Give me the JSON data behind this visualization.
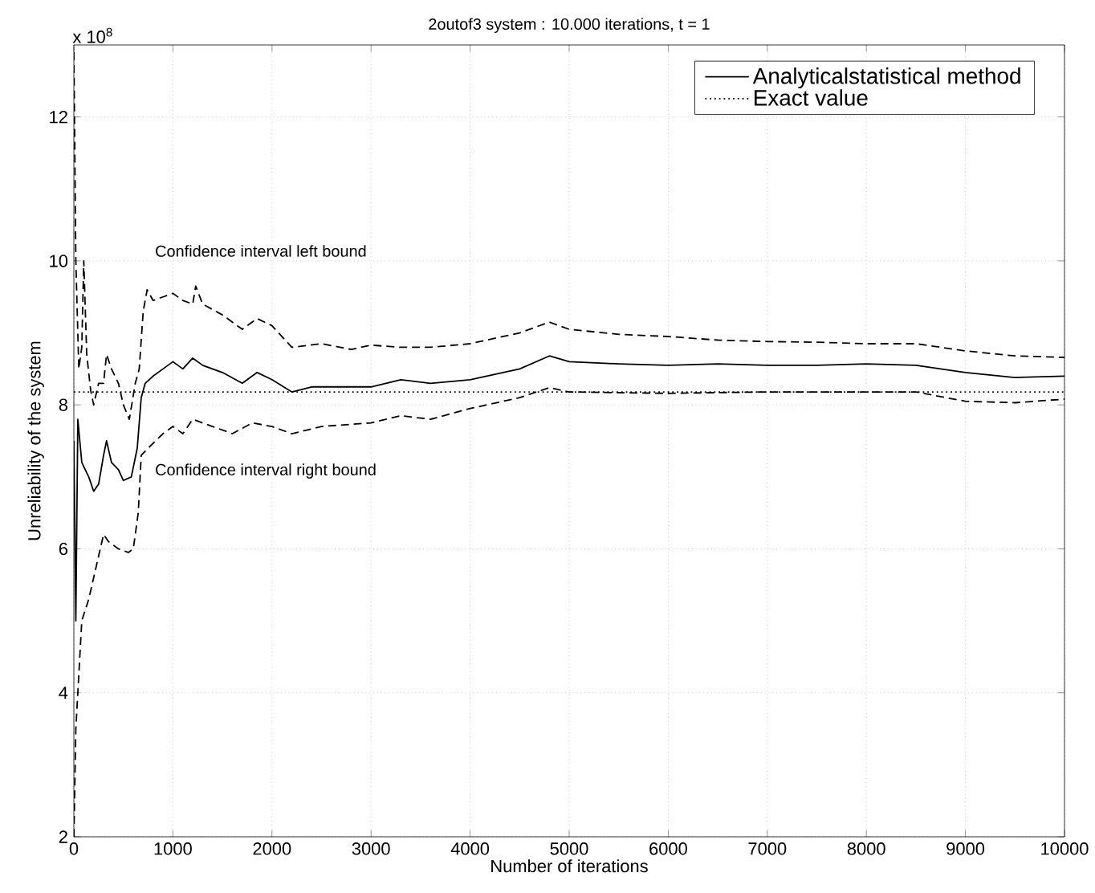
{
  "chart_data": {
    "type": "line",
    "title": "2outof3 system : 10.000 iterations, t = 1",
    "xlabel": "Number of iterations",
    "ylabel": "Unreliability of the system",
    "annotations": [
      "x 10$^{8}$",
      "Confidence interval left bound",
      "Confidence interval right bound"
    ],
    "xlim": [
      0,
      10000
    ],
    "ylim": [
      2,
      13
    ],
    "xticks": [
      0,
      1000,
      2000,
      3000,
      4000,
      5000,
      6000,
      7000,
      8000,
      9000,
      10000
    ],
    "yticks": [
      2,
      4,
      6,
      8,
      10,
      12
    ],
    "grid": true,
    "legend": "top right",
    "series": [
      {
        "name": "Analyticalstatistical method",
        "color": "#000000",
        "line_style": "solid",
        "x": [
          0,
          20,
          40,
          80,
          150,
          200,
          250,
          300,
          330,
          380,
          450,
          500,
          580,
          640,
          680,
          720,
          800,
          900,
          1000,
          1100,
          1200,
          1300,
          1500,
          1700,
          1850,
          2000,
          2200,
          2400,
          2800,
          3000,
          3300,
          3600,
          4000,
          4500,
          4800,
          5000,
          5500,
          6000,
          6500,
          7000,
          7500,
          8000,
          8500,
          9000,
          9500,
          10000
        ],
        "values": [
          7.5,
          5.0,
          7.8,
          7.2,
          7.0,
          6.8,
          6.9,
          7.3,
          7.5,
          7.2,
          7.1,
          6.95,
          7.0,
          7.4,
          8.1,
          8.3,
          8.4,
          8.5,
          8.6,
          8.5,
          8.65,
          8.55,
          8.45,
          8.3,
          8.45,
          8.35,
          8.18,
          8.25,
          8.25,
          8.25,
          8.35,
          8.3,
          8.35,
          8.5,
          8.68,
          8.6,
          8.57,
          8.55,
          8.57,
          8.55,
          8.55,
          8.57,
          8.55,
          8.45,
          8.38,
          8.4
        ]
      },
      {
        "name": "Exact value",
        "color": "#000000",
        "line_style": "dotted",
        "x": [
          0,
          10000
        ],
        "values": [
          8.18,
          8.18
        ]
      },
      {
        "color": "#000000",
        "line_style": "dashed",
        "x": [
          0,
          20,
          50,
          80,
          100,
          130,
          170,
          200,
          250,
          300,
          330,
          380,
          450,
          500,
          560,
          620,
          660,
          700,
          740,
          800,
          900,
          1000,
          1100,
          1200,
          1230,
          1300,
          1500,
          1700,
          1850,
          2000,
          2200,
          2500,
          2800,
          3000,
          3300,
          3600,
          4000,
          4500,
          4800,
          5000,
          5500,
          6000,
          6500,
          7000,
          7500,
          8000,
          8500,
          9000,
          9500,
          10000
        ],
        "values": [
          12.9,
          10.0,
          8.5,
          8.8,
          10.0,
          8.7,
          8.2,
          8.0,
          8.3,
          8.3,
          8.7,
          8.5,
          8.3,
          8.0,
          7.8,
          8.3,
          8.5,
          9.3,
          9.6,
          9.45,
          9.5,
          9.55,
          9.45,
          9.4,
          9.65,
          9.4,
          9.25,
          9.05,
          9.2,
          9.1,
          8.8,
          8.85,
          8.77,
          8.83,
          8.8,
          8.8,
          8.85,
          9.0,
          9.15,
          9.05,
          8.98,
          8.95,
          8.9,
          8.88,
          8.87,
          8.85,
          8.85,
          8.75,
          8.68,
          8.66
        ]
      },
      {
        "color": "#000000",
        "line_style": "dashed",
        "x": [
          0,
          20,
          40,
          80,
          150,
          200,
          300,
          350,
          450,
          550,
          600,
          650,
          680,
          750,
          900,
          1000,
          1100,
          1200,
          1400,
          1600,
          1800,
          2000,
          2200,
          2500,
          3000,
          3300,
          3600,
          4000,
          4500,
          4800,
          5000,
          6000,
          7000,
          8000,
          8500,
          9000,
          9500,
          10000
        ],
        "values": [
          2.0,
          3.5,
          4.0,
          5.0,
          5.3,
          5.6,
          6.2,
          6.1,
          6.0,
          5.95,
          6.0,
          6.5,
          7.3,
          7.4,
          7.6,
          7.7,
          7.6,
          7.8,
          7.7,
          7.6,
          7.75,
          7.7,
          7.6,
          7.7,
          7.75,
          7.85,
          7.8,
          7.95,
          8.1,
          8.24,
          8.18,
          8.16,
          8.18,
          8.18,
          8.18,
          8.05,
          8.03,
          8.08
        ]
      }
    ]
  }
}
